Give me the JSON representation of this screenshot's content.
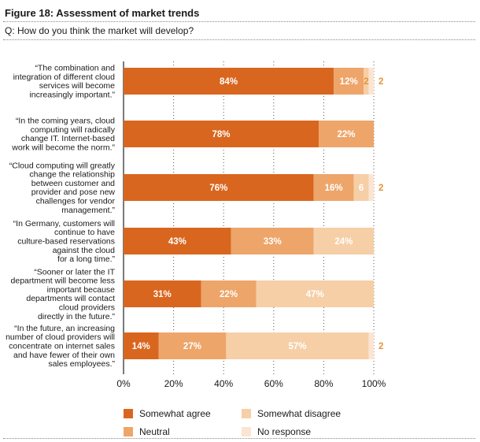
{
  "figure_title": "Figure 18: Assessment of market trends",
  "question": "Q: How do you think the market will develop?",
  "chart_data": {
    "type": "bar",
    "orientation": "horizontal",
    "stacked": true,
    "xlim": [
      0,
      100
    ],
    "x_ticks": [
      "0%",
      "20%",
      "40%",
      "60%",
      "80%",
      "100%"
    ],
    "grid": "vertical dotted",
    "legend_position": "bottom",
    "categories": [
      [
        "“The combination and",
        "integration of different cloud",
        "services will become",
        "increasingly important.”"
      ],
      [
        "“In the coming years, cloud",
        "computing will radically",
        "change IT. Internet-based",
        "work will become the norm.”"
      ],
      [
        "“Cloud computing will greatly",
        "change the relationship",
        "between customer and",
        "provider and pose new",
        "challenges for vendor",
        "management.”"
      ],
      [
        "“In Germany, customers will",
        "continue to have",
        "culture-based reservations",
        "against the cloud",
        "for a long time.”"
      ],
      [
        "“Sooner or later the IT",
        "department will become less",
        "important because",
        "departments will contact",
        "cloud providers",
        "directly in the future.”"
      ],
      [
        "“In the future, an increasing",
        "number of cloud providers will",
        "concentrate on internet sales",
        "and have fewer of their own",
        "sales employees.”"
      ]
    ],
    "series": [
      {
        "name": "Somewhat agree",
        "color": "#d9661f",
        "values": [
          84,
          78,
          76,
          43,
          31,
          14
        ],
        "labels": [
          "84%",
          "78%",
          "76%",
          "43%",
          "31%",
          "14%"
        ]
      },
      {
        "name": "Neutral",
        "color": "#eda56a",
        "values": [
          12,
          22,
          16,
          33,
          22,
          27
        ],
        "labels": [
          "12%",
          "22%",
          "16%",
          "33%",
          "22%",
          "27%"
        ]
      },
      {
        "name": "Somewhat disagree",
        "color": "#f6cfa7",
        "values": [
          2,
          0,
          6,
          24,
          47,
          57
        ],
        "labels": [
          "2",
          "",
          "6",
          "24%",
          "47%",
          "57%"
        ]
      },
      {
        "name": "No response",
        "color": "#fbe5d2",
        "values": [
          2,
          0,
          2,
          0,
          0,
          2
        ],
        "labels": [
          "2",
          "",
          "2",
          "",
          "",
          "2"
        ]
      }
    ]
  }
}
